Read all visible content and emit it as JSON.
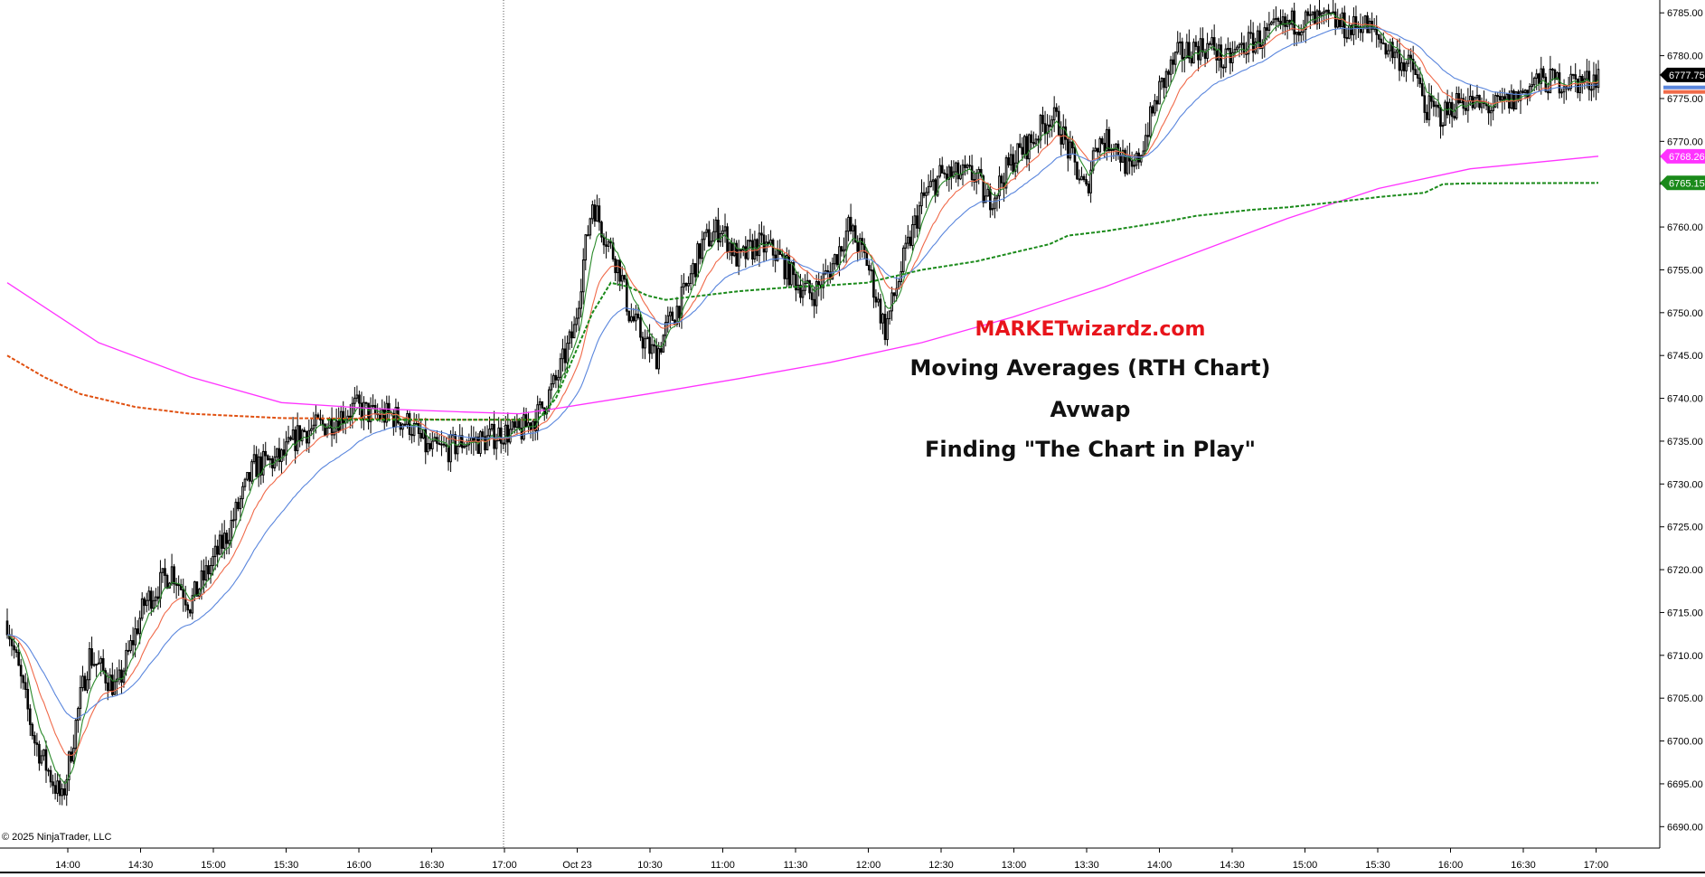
{
  "overlay": {
    "brand": "MARKETwizardz.com",
    "line1": "Moving Averages (RTH Chart)",
    "line2": "Avwap",
    "line3": "Finding \"The Chart in Play\""
  },
  "copyright": "© 2025 NinjaTrader, LLC",
  "colors": {
    "ema_fast": "#2a8a2a",
    "ema_mid": "#f06a4a",
    "ema_slow": "#5a86dd",
    "sma_long": "#ff33ff",
    "avwap_green": "#1a8a1a",
    "avwap_orange": "#e05010",
    "candle": "#000000"
  },
  "chart_data": {
    "type": "candlestick",
    "instrument_timeframe": "1-minute-like intraday bars",
    "ylim": [
      6687.5,
      6786.5
    ],
    "y_ticks": [
      6690,
      6695,
      6700,
      6705,
      6710,
      6715,
      6720,
      6725,
      6730,
      6735,
      6740,
      6745,
      6750,
      6755,
      6760,
      6765,
      6770,
      6775,
      6780,
      6785
    ],
    "y_tick_labels": [
      "6690.00",
      "6695.00",
      "6700.00",
      "6705.00",
      "6710.00",
      "6715.00",
      "6720.00",
      "6725.00",
      "6730.00",
      "6735.00",
      "6740.00",
      "6745.00",
      "6750.00",
      "6755.00",
      "6760.00",
      "6765.00",
      "6770.00",
      "6775.00",
      "6780.00",
      "6785.00"
    ],
    "x_ticks": [
      "14:00",
      "14:30",
      "15:00",
      "15:30",
      "16:00",
      "16:30",
      "17:00",
      "Oct 23",
      "10:30",
      "11:00",
      "11:30",
      "12:00",
      "12:30",
      "13:00",
      "13:30",
      "14:00",
      "14:30",
      "15:00",
      "15:30",
      "16:00",
      "16:30",
      "17:00"
    ],
    "session_break_tick": "17:00",
    "price_markers": [
      {
        "label": "6777.75",
        "value": 6777.75,
        "color": "#000000"
      },
      {
        "label": "6768.26",
        "value": 6768.26,
        "color": "#ff33ff"
      },
      {
        "label": "6765.15",
        "value": 6765.15,
        "color": "#1a8a1a"
      }
    ],
    "close_path": [
      [
        0,
        6714
      ],
      [
        3,
        6700
      ],
      [
        6,
        6693
      ],
      [
        8,
        6705
      ],
      [
        9,
        6710
      ],
      [
        12,
        6706
      ],
      [
        15,
        6716
      ],
      [
        18,
        6720
      ],
      [
        20,
        6716
      ],
      [
        24,
        6724
      ],
      [
        27,
        6732
      ],
      [
        30,
        6733
      ],
      [
        32,
        6736
      ],
      [
        35,
        6737
      ],
      [
        38,
        6739
      ],
      [
        40,
        6738
      ],
      [
        42,
        6738
      ],
      [
        44,
        6737
      ],
      [
        46,
        6734
      ],
      [
        48,
        6734
      ],
      [
        50,
        6735
      ],
      [
        52,
        6735
      ],
      [
        54,
        6736
      ],
      [
        56,
        6736
      ],
      [
        58,
        6738
      ],
      [
        60,
        6742
      ],
      [
        62,
        6748
      ],
      [
        63,
        6756
      ],
      [
        64,
        6763
      ],
      [
        65,
        6760
      ],
      [
        67,
        6755
      ],
      [
        68,
        6750
      ],
      [
        70,
        6746
      ],
      [
        71,
        6745
      ],
      [
        72,
        6748
      ],
      [
        74,
        6752
      ],
      [
        76,
        6758
      ],
      [
        78,
        6760
      ],
      [
        80,
        6756
      ],
      [
        82,
        6758
      ],
      [
        84,
        6757
      ],
      [
        86,
        6754
      ],
      [
        88,
        6752
      ],
      [
        90,
        6755
      ],
      [
        92,
        6760
      ],
      [
        94,
        6756
      ],
      [
        95,
        6752
      ],
      [
        96,
        6748
      ],
      [
        98,
        6756
      ],
      [
        100,
        6763
      ],
      [
        102,
        6766
      ],
      [
        104,
        6766
      ],
      [
        106,
        6766
      ],
      [
        107,
        6763
      ],
      [
        108,
        6764
      ],
      [
        110,
        6768
      ],
      [
        112,
        6770
      ],
      [
        114,
        6773
      ],
      [
        115,
        6772
      ],
      [
        116,
        6769
      ],
      [
        118,
        6764
      ],
      [
        119,
        6770
      ],
      [
        121,
        6770
      ],
      [
        123,
        6766
      ],
      [
        124,
        6769
      ],
      [
        126,
        6776
      ],
      [
        128,
        6780
      ],
      [
        130,
        6781
      ],
      [
        132,
        6781
      ],
      [
        133,
        6779
      ],
      [
        135,
        6781
      ],
      [
        137,
        6782
      ],
      [
        139,
        6783
      ],
      [
        141,
        6784
      ],
      [
        143,
        6784
      ],
      [
        145,
        6784
      ],
      [
        147,
        6783
      ],
      [
        148,
        6784
      ],
      [
        150,
        6782
      ],
      [
        152,
        6780
      ],
      [
        154,
        6778
      ],
      [
        155,
        6774
      ],
      [
        157,
        6773
      ],
      [
        159,
        6775
      ],
      [
        161,
        6774
      ],
      [
        163,
        6774
      ],
      [
        165,
        6775
      ],
      [
        167,
        6777
      ],
      [
        169,
        6777
      ],
      [
        171,
        6777
      ],
      [
        173,
        6777
      ],
      [
        174,
        6778
      ]
    ],
    "series": [
      {
        "name": "",
        "kind": "ema-fast",
        "color": "#2a8a2a"
      },
      {
        "name": "",
        "kind": "ema-mid",
        "color": "#f06a4a"
      },
      {
        "name": "",
        "kind": "ema-slow",
        "color": "#5a86dd"
      },
      {
        "name": "",
        "kind": "sma-long",
        "color": "#ff33ff",
        "values": [
          [
            0,
            6753.5
          ],
          [
            10,
            6746.5
          ],
          [
            20,
            6742.5
          ],
          [
            30,
            6739.5
          ],
          [
            40,
            6738.8
          ],
          [
            50,
            6738.4
          ],
          [
            56,
            6738.2
          ],
          [
            60,
            6738.8
          ],
          [
            70,
            6740.5
          ],
          [
            80,
            6742.3
          ],
          [
            90,
            6744.2
          ],
          [
            100,
            6746.5
          ],
          [
            110,
            6749.5
          ],
          [
            120,
            6753
          ],
          [
            130,
            6757
          ],
          [
            140,
            6761
          ],
          [
            150,
            6764.5
          ],
          [
            160,
            6766.8
          ],
          [
            174,
            6768.26
          ]
        ]
      },
      {
        "name": "",
        "kind": "avwap-prior-session",
        "color": "#e05010",
        "dashed": true,
        "values": [
          [
            0,
            6745
          ],
          [
            4,
            6742.5
          ],
          [
            8,
            6740.5
          ],
          [
            14,
            6739
          ],
          [
            20,
            6738.2
          ],
          [
            30,
            6737.7
          ],
          [
            40,
            6737.6
          ],
          [
            50,
            6737.5
          ],
          [
            58,
            6737.5
          ]
        ]
      },
      {
        "name": "",
        "kind": "avwap-session",
        "color": "#1a8a1a",
        "dashed": true,
        "values": [
          [
            35,
            6737.5
          ],
          [
            58,
            6737.5
          ],
          [
            60,
            6740
          ],
          [
            62,
            6745
          ],
          [
            64,
            6750
          ],
          [
            66,
            6753.5
          ],
          [
            68,
            6753
          ],
          [
            70,
            6752
          ],
          [
            72,
            6751.5
          ],
          [
            76,
            6752
          ],
          [
            80,
            6752.5
          ],
          [
            86,
            6753
          ],
          [
            90,
            6753.2
          ],
          [
            94,
            6753.5
          ],
          [
            100,
            6755
          ],
          [
            106,
            6756
          ],
          [
            110,
            6757
          ],
          [
            114,
            6758
          ],
          [
            116,
            6759
          ],
          [
            120,
            6759.5
          ],
          [
            126,
            6760.5
          ],
          [
            130,
            6761.3
          ],
          [
            136,
            6762
          ],
          [
            140,
            6762.3
          ],
          [
            146,
            6763
          ],
          [
            150,
            6763.5
          ],
          [
            155,
            6764
          ],
          [
            157,
            6765
          ],
          [
            160,
            6765.1
          ],
          [
            174,
            6765.15
          ]
        ]
      }
    ]
  }
}
